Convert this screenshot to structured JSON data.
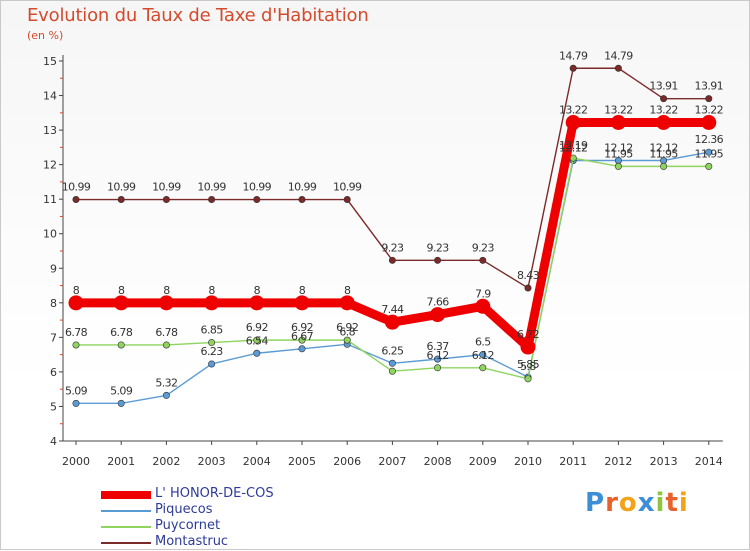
{
  "chart_data": {
    "type": "line",
    "title": "Evolution du Taux de Taxe d'Habitation",
    "ylabel": "(en %)",
    "xlabel": "",
    "x": [
      "2000",
      "2001",
      "2002",
      "2003",
      "2004",
      "2005",
      "2006",
      "2007",
      "2008",
      "2009",
      "2010",
      "2011",
      "2012",
      "2013",
      "2014"
    ],
    "ylim": [
      4,
      15
    ],
    "yticks": [
      "4",
      "5",
      "6",
      "7",
      "8",
      "9",
      "10",
      "11",
      "12",
      "13",
      "14",
      "15"
    ],
    "grid": false,
    "legend_position": "bottom-left",
    "series": [
      {
        "name": "L' HONOR-DE-COS",
        "color": "#ee0000",
        "values": [
          8,
          8,
          8,
          8,
          8,
          8,
          8,
          7.44,
          7.66,
          7.9,
          6.72,
          13.22,
          13.22,
          13.22,
          13.22
        ],
        "labels": [
          "8",
          "8",
          "8",
          "8",
          "8",
          "8",
          "8",
          "7.44",
          "7.66",
          "7.9",
          "6.72",
          "13.22",
          "13.22",
          "13.22",
          "13.22"
        ]
      },
      {
        "name": "Piquecos",
        "color": "#5b9bd5",
        "values": [
          5.09,
          5.09,
          5.32,
          6.23,
          6.54,
          6.67,
          6.8,
          6.25,
          6.37,
          6.5,
          5.85,
          12.12,
          12.12,
          12.12,
          12.36
        ],
        "labels": [
          "5.09",
          "5.09",
          "5.32",
          "6.23",
          "6.54",
          "6.67",
          "6.8",
          "6.25",
          "6.37",
          "6.5",
          "5.85",
          "12.12",
          "12.12",
          "12.12",
          "12.36"
        ]
      },
      {
        "name": "Puycornet",
        "color": "#8ed45e",
        "values": [
          6.78,
          6.78,
          6.78,
          6.85,
          6.92,
          6.92,
          6.92,
          6.02,
          6.12,
          6.12,
          5.8,
          12.19,
          11.95,
          11.95,
          11.95
        ],
        "labels": [
          "6.78",
          "6.78",
          "6.78",
          "6.85",
          "6.92",
          "6.92",
          "6.92",
          "",
          "6.12",
          "6.12",
          "5.8",
          "12.19",
          "11.95",
          "11.95",
          "11.95"
        ]
      },
      {
        "name": "Montastruc",
        "color": "#7b2a2a",
        "values": [
          10.99,
          10.99,
          10.99,
          10.99,
          10.99,
          10.99,
          10.99,
          9.23,
          9.23,
          9.23,
          8.43,
          14.79,
          14.79,
          13.91,
          13.91
        ],
        "labels": [
          "10.99",
          "10.99",
          "10.99",
          "10.99",
          "10.99",
          "10.99",
          "10.99",
          "9.23",
          "9.23",
          "9.23",
          "8.43",
          "14.79",
          "14.79",
          "13.91",
          "13.91"
        ]
      }
    ]
  },
  "brand": {
    "letters": [
      "P",
      "r",
      "o",
      "x",
      "i",
      "t",
      "i"
    ],
    "colors": [
      "#3a8fd6",
      "#e8612c",
      "#f2a31b",
      "#3a8fd6",
      "#8cc63f",
      "#e8612c",
      "#f2a31b"
    ]
  }
}
